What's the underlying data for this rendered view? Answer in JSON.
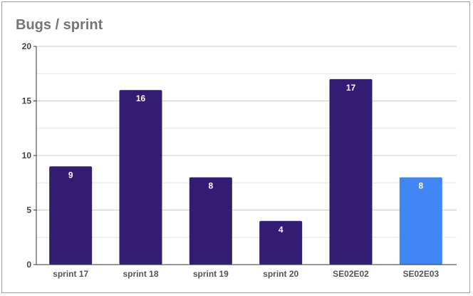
{
  "chart_data": {
    "type": "bar",
    "title": "Bugs / sprint",
    "xlabel": "",
    "ylabel": "",
    "ylim": [
      0,
      20
    ],
    "yticks": [
      0,
      5,
      10,
      15,
      20
    ],
    "minor_grid_step": 2.5,
    "categories": [
      "sprint 17",
      "sprint 18",
      "sprint 19",
      "sprint 20",
      "SE02E02",
      "SE02E03"
    ],
    "values": [
      9,
      16,
      8,
      4,
      17,
      8
    ],
    "colors": [
      "#331c73",
      "#331c73",
      "#331c73",
      "#331c73",
      "#331c73",
      "#4285f4"
    ],
    "data_labels": true,
    "grid": true,
    "legend": "none"
  }
}
